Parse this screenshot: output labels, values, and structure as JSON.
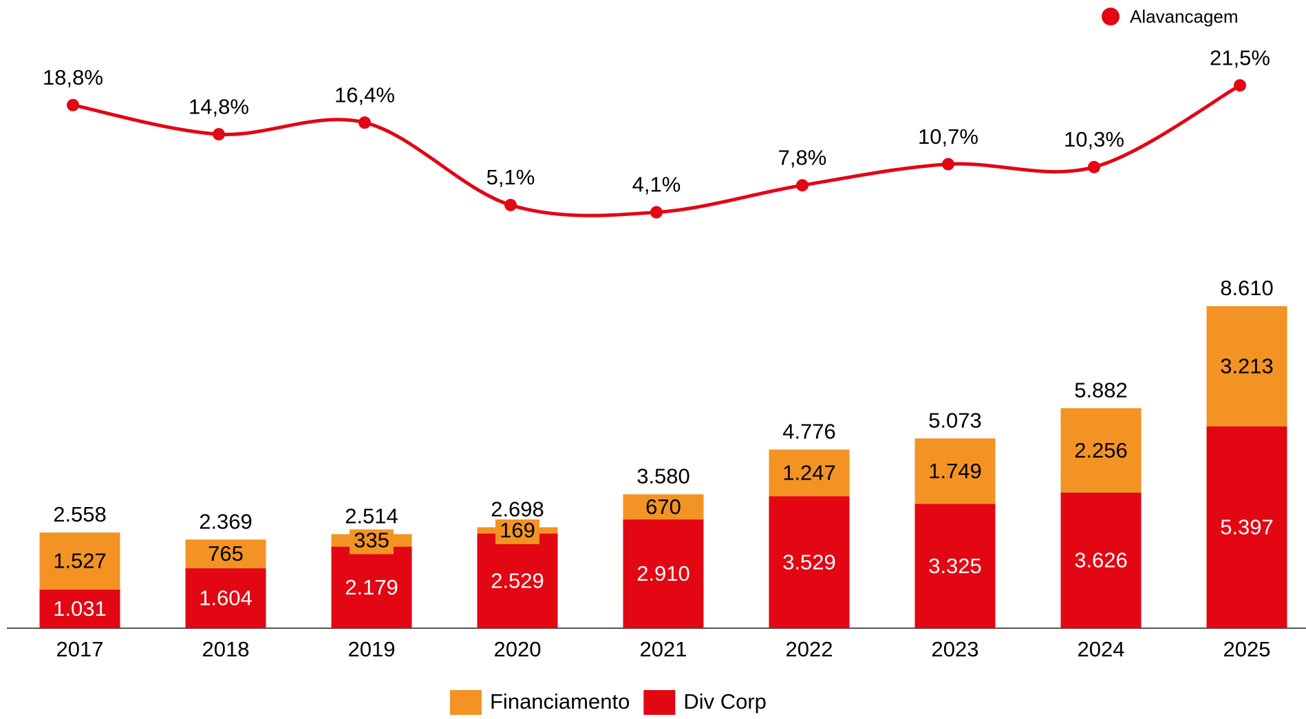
{
  "chart_data": {
    "type": "bar",
    "categories": [
      "2017",
      "2018",
      "2019",
      "2020",
      "2021",
      "2022",
      "2023",
      "2024",
      "2025"
    ],
    "series": [
      {
        "name": "Div Corp",
        "type": "bar",
        "color": "#e30613",
        "values": [
          1031,
          1604,
          2179,
          2529,
          2910,
          3529,
          3325,
          3626,
          5397
        ],
        "value_labels": [
          "1.031",
          "1.604",
          "2.179",
          "2.529",
          "2.910",
          "3.529",
          "3.325",
          "3.626",
          "5.397"
        ]
      },
      {
        "name": "Financiamento",
        "type": "bar",
        "color": "#f39323",
        "values": [
          1527,
          765,
          335,
          169,
          670,
          1247,
          1749,
          2256,
          3213
        ],
        "value_labels": [
          "1.527",
          "765",
          "335",
          "169",
          "670",
          "1.247",
          "1.749",
          "2.256",
          "3.213"
        ]
      },
      {
        "name": "Alavancagem",
        "type": "line",
        "color": "#e30613",
        "values": [
          18.8,
          14.8,
          16.4,
          5.1,
          4.1,
          7.8,
          10.7,
          10.3,
          21.5
        ],
        "value_labels": [
          "18,8%",
          "14,8%",
          "16,4%",
          "5,1%",
          "4,1%",
          "7,8%",
          "10,7%",
          "10,3%",
          "21,5%"
        ]
      }
    ],
    "totals": [
      2558,
      2369,
      2514,
      2698,
      3580,
      4776,
      5073,
      5882,
      8610
    ],
    "total_labels": [
      "2.558",
      "2.369",
      "2.514",
      "2.698",
      "3.580",
      "4.776",
      "5.073",
      "5.882",
      "8.610"
    ]
  }
}
